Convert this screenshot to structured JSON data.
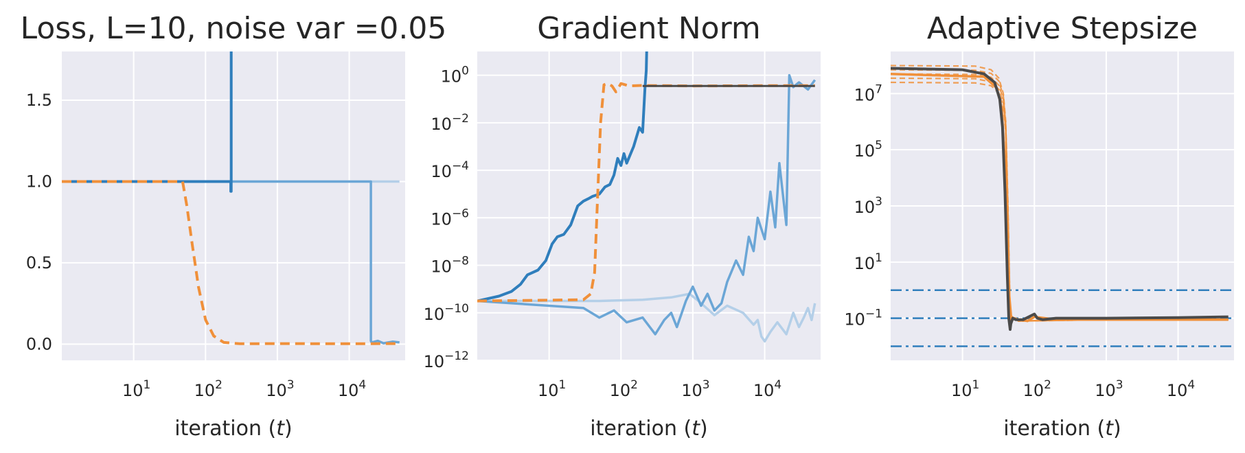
{
  "colors": {
    "bg": "#eaeaf2",
    "grid": "#ffffff",
    "blue": "#2f7ebc",
    "blue_mid": "#6ba6d6",
    "blue_light": "#b4cfe8",
    "orange": "#f0903a",
    "gray": "#4a4a4a"
  },
  "chart_data": [
    {
      "type": "line",
      "title": "Loss, L=10, noise var =0.05",
      "xlabel": "iteration (t)",
      "ylabel": "",
      "xscale": "log",
      "yscale": "linear",
      "xlim": [
        1,
        60000
      ],
      "ylim": [
        -0.1,
        1.8
      ],
      "yticks": [
        {
          "value": 0.0,
          "label": "0.0"
        },
        {
          "value": 0.5,
          "label": "0.5"
        },
        {
          "value": 1.0,
          "label": "1.0"
        },
        {
          "value": 1.5,
          "label": "1.5"
        }
      ],
      "xticks": [
        {
          "value": 10,
          "exp": "1"
        },
        {
          "value": 100,
          "exp": "2"
        },
        {
          "value": 1000,
          "exp": "3"
        },
        {
          "value": 10000,
          "exp": "4"
        }
      ],
      "grid": true,
      "series": [
        {
          "color_key": "blue_light",
          "dash": "",
          "width": 3.5,
          "x": [
            1,
            50000
          ],
          "y": [
            1.0,
            1.0
          ]
        },
        {
          "color_key": "blue_mid",
          "dash": "",
          "width": 3.5,
          "x": [
            1,
            20000,
            20000,
            20500,
            25000,
            30000,
            40000,
            50000
          ],
          "y": [
            1.0,
            1.0,
            0.02,
            0.01,
            0.02,
            0.005,
            0.015,
            0.01
          ]
        },
        {
          "color_key": "blue",
          "dash": "",
          "width": 4,
          "x": [
            1,
            225,
            225,
            228,
            228
          ],
          "y": [
            1.0,
            1.0,
            0.94,
            0.94,
            2.0
          ]
        },
        {
          "color_key": "orange",
          "dash": "14,8",
          "width": 4,
          "x": [
            1,
            48,
            55,
            65,
            80,
            100,
            130,
            180,
            300,
            1000,
            10000,
            50000
          ],
          "y": [
            1.0,
            1.0,
            0.85,
            0.62,
            0.35,
            0.15,
            0.05,
            0.01,
            0.002,
            0.003,
            0.002,
            0.003
          ]
        }
      ]
    },
    {
      "type": "line",
      "title": "Gradient Norm",
      "xlabel": "iteration (t)",
      "ylabel": "",
      "xscale": "log",
      "yscale": "log",
      "xlim": [
        1,
        60000
      ],
      "ylim_log10": [
        -12,
        1
      ],
      "yticks": [
        {
          "value": 0,
          "exp": "0"
        },
        {
          "value": -2,
          "exp": "−2"
        },
        {
          "value": -4,
          "exp": "−4"
        },
        {
          "value": -6,
          "exp": "−6"
        },
        {
          "value": -8,
          "exp": "−8"
        },
        {
          "value": -10,
          "exp": "−10"
        },
        {
          "value": -12,
          "exp": "−12"
        }
      ],
      "xticks": [
        {
          "value": 10,
          "exp": "1"
        },
        {
          "value": 100,
          "exp": "2"
        },
        {
          "value": 1000,
          "exp": "3"
        },
        {
          "value": 10000,
          "exp": "4"
        }
      ],
      "grid": true,
      "series": [
        {
          "color_key": "blue_light",
          "dash": "",
          "width": 3.5,
          "x": [
            1,
            50,
            200,
            500,
            900,
            1200,
            2000,
            3000,
            5000,
            7000,
            8000,
            9000,
            10000,
            12000,
            15000,
            20000,
            25000,
            30000,
            35000,
            40000,
            45000,
            50000
          ],
          "y": [
            -9.5,
            -9.5,
            -9.45,
            -9.35,
            -9.2,
            -9.5,
            -10.1,
            -9.7,
            -10.0,
            -10.5,
            -10.3,
            -11.0,
            -11.2,
            -10.8,
            -10.4,
            -10.9,
            -10.0,
            -10.6,
            -10.2,
            -9.8,
            -10.3,
            -9.6
          ]
        },
        {
          "color_key": "blue_mid",
          "dash": "",
          "width": 3.5,
          "x": [
            1,
            30,
            50,
            80,
            120,
            200,
            300,
            400,
            500,
            600,
            800,
            1000,
            1300,
            1600,
            2000,
            2500,
            3000,
            4000,
            5000,
            6000,
            7000,
            8000,
            10000,
            12000,
            14000,
            16000,
            20000,
            22000,
            25000,
            30000,
            40000,
            50000
          ],
          "y": [
            -9.5,
            -9.8,
            -10.2,
            -9.9,
            -10.4,
            -10.2,
            -10.9,
            -10.3,
            -10.0,
            -10.6,
            -9.5,
            -8.9,
            -9.7,
            -9.2,
            -9.9,
            -9.6,
            -8.7,
            -7.8,
            -8.4,
            -6.8,
            -7.4,
            -6.0,
            -6.9,
            -4.9,
            -6.4,
            -3.7,
            -6.3,
            0.0,
            -0.5,
            -0.3,
            -0.6,
            -0.2
          ]
        },
        {
          "color_key": "blue",
          "dash": "",
          "width": 4,
          "x": [
            1,
            2,
            3,
            4,
            5,
            7,
            9,
            11,
            13,
            16,
            20,
            25,
            30,
            35,
            40,
            45,
            50,
            60,
            70,
            80,
            90,
            100,
            110,
            120,
            150,
            180,
            200,
            215,
            225,
            232
          ],
          "y": [
            -9.5,
            -9.3,
            -9.1,
            -8.8,
            -8.4,
            -8.2,
            -7.8,
            -7.1,
            -6.8,
            -6.7,
            -6.3,
            -5.5,
            -5.3,
            -5.2,
            -5.1,
            -5.05,
            -5.0,
            -4.7,
            -4.6,
            -4.2,
            -3.5,
            -3.8,
            -3.3,
            -3.7,
            -3.0,
            -2.2,
            -2.4,
            -0.6,
            0.2,
            2.0
          ]
        },
        {
          "color_key": "orange",
          "dash": "14,8",
          "width": 4,
          "x": [
            1,
            30,
            38,
            43,
            47,
            52,
            58,
            65,
            75,
            85,
            100,
            130,
            200,
            1000,
            10000,
            50000
          ],
          "y": [
            -9.5,
            -9.45,
            -9.2,
            -8.3,
            -5.3,
            -2.0,
            -0.4,
            -0.35,
            -0.45,
            -0.7,
            -0.35,
            -0.45,
            -0.43,
            -0.45,
            -0.44,
            -0.44
          ]
        },
        {
          "color_key": "gray",
          "dash": "",
          "width": 3,
          "x": [
            200,
            1000,
            10000,
            50000
          ],
          "y": [
            -0.45,
            -0.45,
            -0.45,
            -0.45
          ]
        }
      ]
    },
    {
      "type": "line",
      "title": "Adaptive Stepsize",
      "xlabel": "iteration (t)",
      "ylabel": "",
      "xscale": "log",
      "yscale": "log",
      "xlim": [
        1,
        60000
      ],
      "ylim_log10": [
        -2.5,
        8.5
      ],
      "yticks": [
        {
          "value": 7,
          "exp": "7"
        },
        {
          "value": 5,
          "exp": "5"
        },
        {
          "value": 3,
          "exp": "3"
        },
        {
          "value": 1,
          "exp": "1"
        },
        {
          "value": -1,
          "exp": "−1"
        }
      ],
      "xticks": [
        {
          "value": 10,
          "exp": "1"
        },
        {
          "value": 100,
          "exp": "2"
        },
        {
          "value": 1000,
          "exp": "3"
        },
        {
          "value": 10000,
          "exp": "4"
        }
      ],
      "grid": true,
      "series": [
        {
          "color_key": "blue",
          "dash": "16,6,4,6",
          "width": 2.5,
          "x": [
            1,
            60000
          ],
          "y": [
            0,
            0
          ]
        },
        {
          "color_key": "blue",
          "dash": "16,6,4,6",
          "width": 2.5,
          "x": [
            1,
            60000
          ],
          "y": [
            -1,
            -1
          ]
        },
        {
          "color_key": "blue",
          "dash": "16,6,4,6",
          "width": 2.5,
          "x": [
            1,
            60000
          ],
          "y": [
            -2,
            -2
          ]
        },
        {
          "color_key": "orange",
          "dash": "8,5",
          "width": 2.2,
          "opacity": 0.85,
          "x": [
            1,
            15,
            25,
            32,
            37,
            40,
            43,
            46,
            60,
            1000,
            50000
          ],
          "y": [
            8.0,
            7.98,
            7.85,
            7.55,
            7.0,
            6.0,
            3.0,
            -0.9,
            -1.1,
            -1.05,
            -1.05
          ]
        },
        {
          "color_key": "orange",
          "dash": "8,5",
          "width": 2.2,
          "opacity": 0.85,
          "x": [
            1,
            15,
            25,
            32,
            37,
            40,
            43,
            46,
            60,
            1000,
            50000
          ],
          "y": [
            7.85,
            7.83,
            7.72,
            7.45,
            6.9,
            5.9,
            2.8,
            -0.9,
            -1.1,
            -1.05,
            -1.05
          ]
        },
        {
          "color_key": "orange",
          "dash": "8,5",
          "width": 2.2,
          "opacity": 0.85,
          "x": [
            1,
            15,
            25,
            32,
            37,
            40,
            43,
            46,
            60,
            1000,
            50000
          ],
          "y": [
            7.7,
            7.68,
            7.58,
            7.3,
            6.8,
            5.8,
            2.6,
            -0.9,
            -1.1,
            -1.05,
            -1.05
          ]
        },
        {
          "color_key": "orange",
          "dash": "8,5",
          "width": 2.2,
          "opacity": 0.85,
          "x": [
            1,
            15,
            25,
            32,
            37,
            40,
            43,
            46,
            60,
            1000,
            50000
          ],
          "y": [
            7.55,
            7.53,
            7.42,
            7.15,
            6.7,
            5.7,
            2.4,
            -0.9,
            -1.1,
            -1.05,
            -1.05
          ]
        },
        {
          "color_key": "orange",
          "dash": "8,5",
          "width": 2.2,
          "opacity": 0.85,
          "x": [
            1,
            15,
            25,
            32,
            37,
            40,
            43,
            46,
            60,
            1000,
            50000
          ],
          "y": [
            7.4,
            7.38,
            7.28,
            7.02,
            6.55,
            5.6,
            2.2,
            -0.9,
            -1.1,
            -1.05,
            -1.05
          ]
        },
        {
          "color_key": "orange",
          "dash": "",
          "width": 3.5,
          "x": [
            1,
            20,
            30,
            35,
            40,
            44,
            48,
            52,
            60,
            80,
            100,
            200,
            1000,
            10000,
            50000
          ],
          "y": [
            7.7,
            7.6,
            7.2,
            6.5,
            4.0,
            0.0,
            -1.1,
            -1.0,
            -1.05,
            -1.1,
            -0.95,
            -1.05,
            -1.05,
            -1.05,
            -1.05
          ]
        },
        {
          "color_key": "gray",
          "dash": "",
          "width": 4,
          "x": [
            1,
            10,
            20,
            28,
            33,
            36,
            39,
            42,
            44,
            46,
            47,
            50,
            55,
            70,
            100,
            110,
            130,
            200,
            1000,
            10000,
            50000
          ],
          "y": [
            7.9,
            7.85,
            7.7,
            7.4,
            6.8,
            5.8,
            3.5,
            0.5,
            -1.0,
            -1.4,
            -1.2,
            -1.0,
            -1.05,
            -1.05,
            -0.85,
            -1.0,
            -1.05,
            -1.0,
            -1.0,
            -0.98,
            -0.95
          ]
        }
      ]
    }
  ]
}
